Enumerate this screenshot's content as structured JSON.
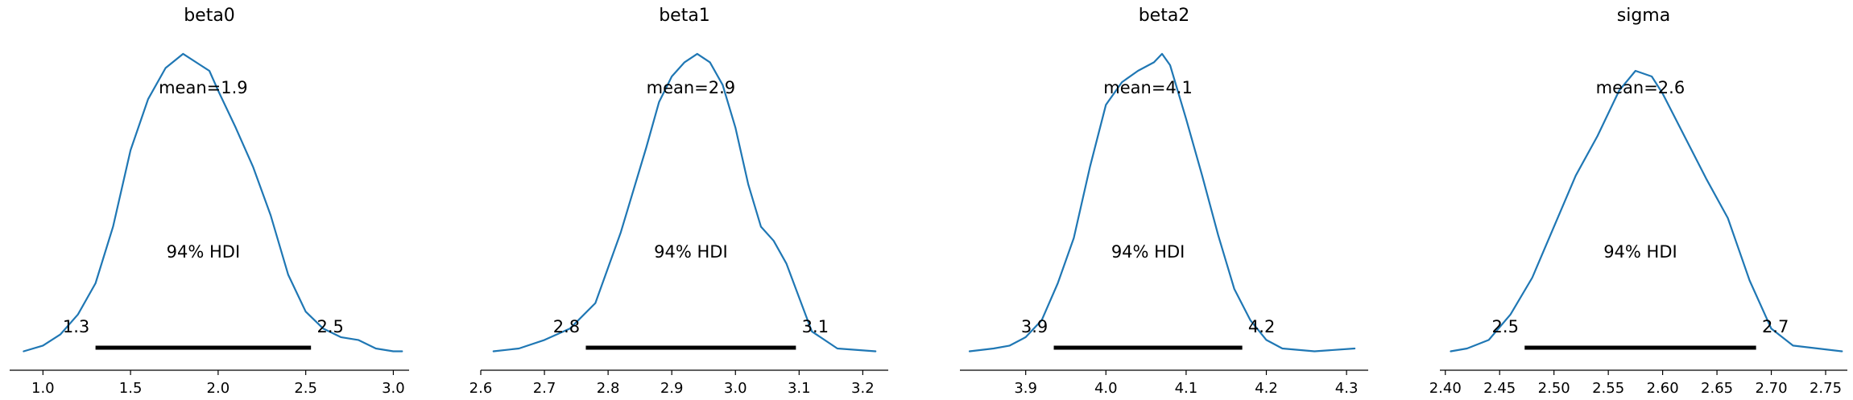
{
  "colors": {
    "density": "#1f77b4",
    "hdi": "#000000",
    "axis": "#000000"
  },
  "chart_data": [
    {
      "type": "line",
      "title": "beta0",
      "mean_label": "mean=1.9",
      "hdi_label": "94% HDI",
      "hdi_low_label": "1.3",
      "hdi_high_label": "2.5",
      "hdi": [
        1.3,
        2.53
      ],
      "xlim": [
        0.81,
        3.09
      ],
      "ylim": [
        0,
        1.1
      ],
      "xticks": [
        1.0,
        1.5,
        2.0,
        2.5,
        3.0
      ],
      "xtick_labels": [
        "1.0",
        "1.5",
        "2.0",
        "2.5",
        "3.0"
      ],
      "x": [
        0.89,
        1.0,
        1.1,
        1.2,
        1.3,
        1.4,
        1.5,
        1.6,
        1.7,
        1.8,
        1.9,
        1.95,
        2.0,
        2.1,
        2.2,
        2.3,
        2.4,
        2.5,
        2.6,
        2.7,
        2.8,
        2.9,
        3.0,
        3.05
      ],
      "y": [
        0.01,
        0.03,
        0.07,
        0.14,
        0.25,
        0.45,
        0.72,
        0.9,
        1.01,
        1.06,
        1.02,
        1.0,
        0.93,
        0.8,
        0.66,
        0.49,
        0.28,
        0.15,
        0.09,
        0.06,
        0.05,
        0.02,
        0.01,
        0.01
      ]
    },
    {
      "type": "line",
      "title": "beta1",
      "mean_label": "mean=2.9",
      "hdi_label": "94% HDI",
      "hdi_low_label": "2.8",
      "hdi_high_label": "3.1",
      "hdi": [
        2.765,
        3.095
      ],
      "xlim": [
        2.6,
        3.24
      ],
      "ylim": [
        0,
        1.1
      ],
      "xticks": [
        2.6,
        2.7,
        2.8,
        2.9,
        3.0,
        3.1,
        3.2
      ],
      "xtick_labels": [
        "2.6",
        "2.7",
        "2.8",
        "2.9",
        "3.0",
        "3.1",
        "3.2"
      ],
      "x": [
        2.62,
        2.66,
        2.7,
        2.74,
        2.78,
        2.82,
        2.86,
        2.88,
        2.9,
        2.92,
        2.94,
        2.96,
        2.98,
        3.0,
        3.02,
        3.04,
        3.06,
        3.08,
        3.1,
        3.12,
        3.16,
        3.22
      ],
      "y": [
        0.01,
        0.02,
        0.05,
        0.09,
        0.18,
        0.43,
        0.73,
        0.89,
        0.98,
        1.03,
        1.06,
        1.03,
        0.95,
        0.8,
        0.6,
        0.45,
        0.4,
        0.32,
        0.2,
        0.08,
        0.02,
        0.01
      ]
    },
    {
      "type": "line",
      "title": "beta2",
      "mean_label": "mean=4.1",
      "hdi_label": "94% HDI",
      "hdi_low_label": "3.9",
      "hdi_high_label": "4.2",
      "hdi": [
        3.935,
        4.17
      ],
      "xlim": [
        3.818,
        4.327
      ],
      "ylim": [
        0,
        1.1
      ],
      "xticks": [
        3.9,
        4.0,
        4.1,
        4.2,
        4.3
      ],
      "xtick_labels": [
        "3.9",
        "4.0",
        "4.1",
        "4.2",
        "4.3"
      ],
      "x": [
        3.83,
        3.86,
        3.88,
        3.9,
        3.92,
        3.94,
        3.96,
        3.98,
        4.0,
        4.02,
        4.04,
        4.06,
        4.07,
        4.08,
        4.1,
        4.12,
        4.14,
        4.16,
        4.18,
        4.2,
        4.22,
        4.26,
        4.31
      ],
      "y": [
        0.01,
        0.02,
        0.03,
        0.06,
        0.12,
        0.25,
        0.41,
        0.66,
        0.88,
        0.96,
        1.0,
        1.03,
        1.06,
        1.02,
        0.83,
        0.63,
        0.42,
        0.23,
        0.12,
        0.05,
        0.02,
        0.01,
        0.02
      ]
    },
    {
      "type": "line",
      "title": "sigma",
      "mean_label": "mean=2.6",
      "hdi_label": "94% HDI",
      "hdi_low_label": "2.5",
      "hdi_high_label": "2.7",
      "hdi": [
        2.473,
        2.686
      ],
      "xlim": [
        2.395,
        2.77
      ],
      "ylim": [
        0,
        1.1
      ],
      "xticks": [
        2.4,
        2.45,
        2.5,
        2.55,
        2.6,
        2.65,
        2.7,
        2.75
      ],
      "xtick_labels": [
        "2.40",
        "2.45",
        "2.50",
        "2.55",
        "2.60",
        "2.65",
        "2.70",
        "2.75"
      ],
      "x": [
        2.405,
        2.42,
        2.44,
        2.46,
        2.48,
        2.5,
        2.52,
        2.54,
        2.56,
        2.575,
        2.59,
        2.6,
        2.62,
        2.64,
        2.66,
        2.68,
        2.7,
        2.72,
        2.765
      ],
      "y": [
        0.01,
        0.02,
        0.05,
        0.14,
        0.27,
        0.45,
        0.63,
        0.77,
        0.93,
        1.0,
        0.98,
        0.92,
        0.77,
        0.62,
        0.48,
        0.26,
        0.09,
        0.03,
        0.01
      ]
    }
  ]
}
